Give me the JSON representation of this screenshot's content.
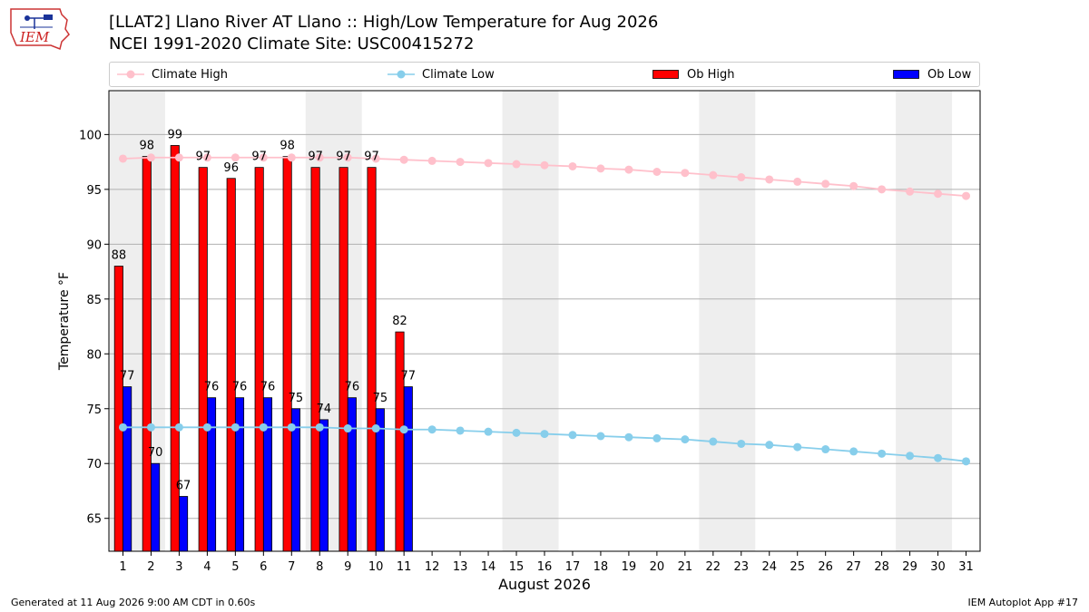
{
  "header": {
    "title_line1": "[LLAT2] Llano River  AT Llano :: High/Low Temperature for Aug 2026",
    "title_line2": "NCEI 1991-2020 Climate Site: USC00415272",
    "logo_text": "IEM"
  },
  "legend": {
    "climate_high": "Climate High",
    "climate_low": "Climate Low",
    "ob_high": "Ob High",
    "ob_low": "Ob Low"
  },
  "colors": {
    "climate_high": "#ffc0cb",
    "climate_low": "#87ceeb",
    "ob_high": "#ff0000",
    "ob_low": "#0000ff",
    "weekend_shade": "#eeeeee",
    "grid": "#b0b0b0"
  },
  "footer": {
    "generated": "Generated at 11 Aug 2026 9:00 AM CDT in 0.60s",
    "app": "IEM Autoplot App #17"
  },
  "chart_data": {
    "type": "bar",
    "xlabel": "August 2026",
    "ylabel": "Temperature °F",
    "ylim": [
      62,
      104
    ],
    "yticks": [
      65,
      70,
      75,
      80,
      85,
      90,
      95,
      100
    ],
    "days": [
      1,
      2,
      3,
      4,
      5,
      6,
      7,
      8,
      9,
      10,
      11,
      12,
      13,
      14,
      15,
      16,
      17,
      18,
      19,
      20,
      21,
      22,
      23,
      24,
      25,
      26,
      27,
      28,
      29,
      30,
      31
    ],
    "shaded_day_pairs": [
      [
        1,
        2
      ],
      [
        8,
        9
      ],
      [
        15,
        16
      ],
      [
        22,
        23
      ],
      [
        29,
        30
      ]
    ],
    "grid": true,
    "legend_position": "top",
    "series": [
      {
        "name": "Ob High",
        "kind": "bar",
        "values": [
          88,
          98,
          99,
          97,
          96,
          97,
          98,
          97,
          97,
          97,
          82
        ]
      },
      {
        "name": "Ob Low",
        "kind": "bar",
        "values": [
          77,
          70,
          67,
          76,
          76,
          76,
          75,
          74,
          76,
          75,
          77
        ]
      },
      {
        "name": "Climate High",
        "kind": "line",
        "values": [
          97.8,
          97.9,
          97.9,
          97.9,
          97.9,
          97.9,
          97.9,
          97.9,
          97.9,
          97.8,
          97.7,
          97.6,
          97.5,
          97.4,
          97.3,
          97.2,
          97.1,
          96.9,
          96.8,
          96.6,
          96.5,
          96.3,
          96.1,
          95.9,
          95.7,
          95.5,
          95.3,
          95.0,
          94.8,
          94.6,
          94.4
        ]
      },
      {
        "name": "Climate Low",
        "kind": "line",
        "values": [
          73.3,
          73.3,
          73.3,
          73.3,
          73.3,
          73.3,
          73.3,
          73.3,
          73.2,
          73.2,
          73.1,
          73.1,
          73.0,
          72.9,
          72.8,
          72.7,
          72.6,
          72.5,
          72.4,
          72.3,
          72.2,
          72.0,
          71.8,
          71.7,
          71.5,
          71.3,
          71.1,
          70.9,
          70.7,
          70.5,
          70.2
        ]
      }
    ]
  }
}
